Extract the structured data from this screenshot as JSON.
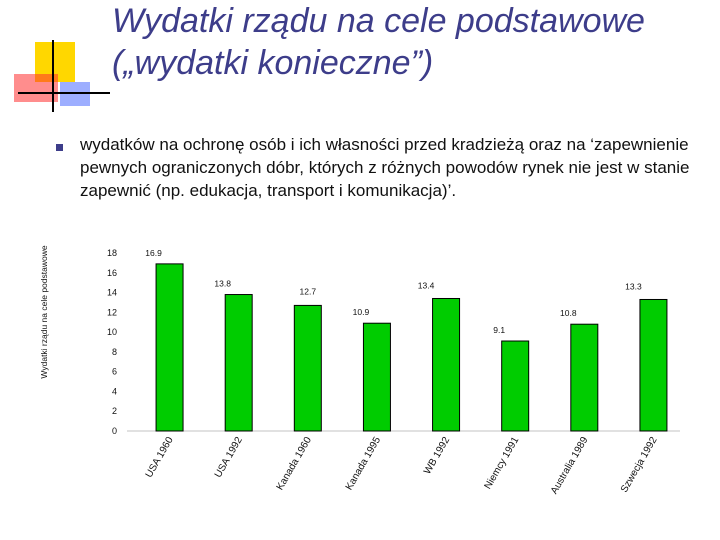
{
  "slide": {
    "title_line1": "Wydatki rządu na cele podstawowe",
    "title_line2": "(„wydatki konieczne”)",
    "bullet_text": "wydatków na ochronę osób i ich własności przed kradzieżą oraz na ‘zapewnienie pewnych ograniczonych dóbr, których z różnych powodów rynek nie jest w stanie zapewnić (np. edukacja, transport i komunikacja)’."
  },
  "colors": {
    "bar_fill": "#00cc00",
    "bar_stroke": "#000000",
    "title": "#3d3d8a",
    "text": "#111111"
  },
  "chart_data": {
    "type": "bar",
    "title": "",
    "xlabel": "",
    "ylabel": "Wydatki rządu na cele podstawowe",
    "categories": [
      "USA 1960",
      "USA 1992",
      "Kanada 1960",
      "Kanada 1995",
      "WB 1992",
      "Niemcy 1991",
      "Australia 1989",
      "Szwecja 1992"
    ],
    "values": [
      16.9,
      13.8,
      12.7,
      10.9,
      13.4,
      9.1,
      10.8,
      13.3
    ],
    "value_labels": [
      "16.9",
      "13.8",
      "12.7",
      "10.9",
      "13.4",
      "9.1",
      "10.8",
      "13.3"
    ],
    "yticks": [
      0,
      2,
      4,
      6,
      8,
      10,
      12,
      14,
      16,
      18
    ],
    "ylim": [
      0,
      18
    ],
    "grid": false,
    "legend": "none"
  }
}
